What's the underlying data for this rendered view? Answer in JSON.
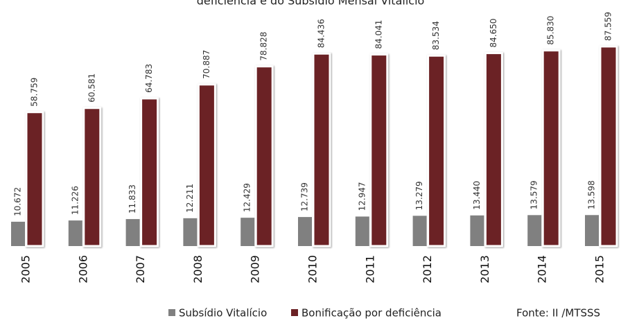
{
  "chart_data": {
    "type": "bar",
    "title": "deficiência e do Subsídio Mensal Vitalício",
    "categories": [
      "2005",
      "2006",
      "2007",
      "2008",
      "2009",
      "2010",
      "2011",
      "2012",
      "2013",
      "2014",
      "2015"
    ],
    "series": [
      {
        "name": "Subsídio Vitalício",
        "color": "#808080",
        "values": [
          10672,
          11226,
          11833,
          12211,
          12429,
          12739,
          12947,
          13279,
          13440,
          13579,
          13598
        ],
        "value_labels": [
          "10.672",
          "11.226",
          "11.833",
          "12.211",
          "12.429",
          "12.739",
          "12.947",
          "13.279",
          "13.440",
          "13.579",
          "13.598"
        ]
      },
      {
        "name": "Bonificação por deficiência",
        "color": "#6b2225",
        "values": [
          58759,
          60581,
          64783,
          70887,
          78828,
          84436,
          84041,
          83534,
          84650,
          85830,
          87559
        ],
        "value_labels": [
          "58.759",
          "60.581",
          "64.783",
          "70.887",
          "78.828",
          "84.436",
          "84.041",
          "83.534",
          "84.650",
          "85.830",
          "87.559"
        ]
      }
    ],
    "source": "Fonte: II /MTSSS"
  }
}
